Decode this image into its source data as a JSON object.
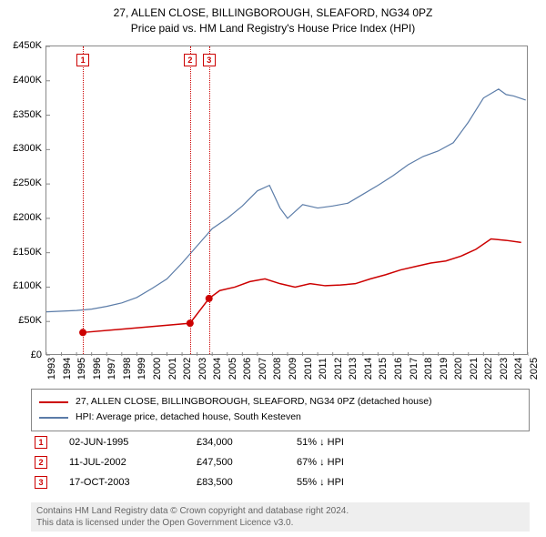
{
  "title": {
    "line1": "27, ALLEN CLOSE, BILLINGBOROUGH, SLEAFORD, NG34 0PZ",
    "line2": "Price paid vs. HM Land Registry's House Price Index (HPI)"
  },
  "chart": {
    "type": "line",
    "background_color": "#ffffff",
    "border_color": "#888888",
    "xlim": [
      1993,
      2025
    ],
    "ylim": [
      0,
      450000
    ],
    "yticks": [
      0,
      50000,
      100000,
      150000,
      200000,
      250000,
      300000,
      350000,
      400000,
      450000
    ],
    "ytick_labels": [
      "£0",
      "£50K",
      "£100K",
      "£150K",
      "£200K",
      "£250K",
      "£300K",
      "£350K",
      "£400K",
      "£450K"
    ],
    "xticks": [
      1993,
      1994,
      1995,
      1996,
      1997,
      1998,
      1999,
      2000,
      2001,
      2002,
      2003,
      2004,
      2005,
      2006,
      2007,
      2008,
      2009,
      2010,
      2011,
      2012,
      2013,
      2014,
      2015,
      2016,
      2017,
      2018,
      2019,
      2020,
      2021,
      2022,
      2023,
      2024,
      2025
    ],
    "label_fontsize": 11,
    "series": {
      "property": {
        "color": "#cc0000",
        "line_width": 1.5,
        "marker_color": "#cc0000",
        "marker_size": 4,
        "points": [
          [
            1995.42,
            34000
          ],
          [
            2002.53,
            47500
          ],
          [
            2003.79,
            83500
          ],
          [
            2004.5,
            95000
          ],
          [
            2005.5,
            100000
          ],
          [
            2006.5,
            108000
          ],
          [
            2007.5,
            112000
          ],
          [
            2008.5,
            105000
          ],
          [
            2009.5,
            100000
          ],
          [
            2010.5,
            105000
          ],
          [
            2011.5,
            102000
          ],
          [
            2012.5,
            103000
          ],
          [
            2013.5,
            105000
          ],
          [
            2014.5,
            112000
          ],
          [
            2015.5,
            118000
          ],
          [
            2016.5,
            125000
          ],
          [
            2017.5,
            130000
          ],
          [
            2018.5,
            135000
          ],
          [
            2019.5,
            138000
          ],
          [
            2020.5,
            145000
          ],
          [
            2021.5,
            155000
          ],
          [
            2022.5,
            170000
          ],
          [
            2023.5,
            168000
          ],
          [
            2024.5,
            165000
          ]
        ],
        "sale_markers": [
          {
            "x": 1995.42,
            "y": 34000
          },
          {
            "x": 2002.53,
            "y": 47500
          },
          {
            "x": 2003.79,
            "y": 83500
          }
        ]
      },
      "hpi": {
        "color": "#5b7ca8",
        "line_width": 1.2,
        "points": [
          [
            1993,
            64000
          ],
          [
            1994,
            65000
          ],
          [
            1995,
            66000
          ],
          [
            1996,
            68000
          ],
          [
            1997,
            72000
          ],
          [
            1998,
            77000
          ],
          [
            1999,
            85000
          ],
          [
            2000,
            98000
          ],
          [
            2001,
            112000
          ],
          [
            2002,
            135000
          ],
          [
            2003,
            160000
          ],
          [
            2004,
            185000
          ],
          [
            2005,
            200000
          ],
          [
            2006,
            218000
          ],
          [
            2007,
            240000
          ],
          [
            2007.8,
            248000
          ],
          [
            2008.5,
            215000
          ],
          [
            2009,
            200000
          ],
          [
            2010,
            220000
          ],
          [
            2011,
            215000
          ],
          [
            2012,
            218000
          ],
          [
            2013,
            222000
          ],
          [
            2014,
            235000
          ],
          [
            2015,
            248000
          ],
          [
            2016,
            262000
          ],
          [
            2017,
            278000
          ],
          [
            2018,
            290000
          ],
          [
            2019,
            298000
          ],
          [
            2020,
            310000
          ],
          [
            2021,
            340000
          ],
          [
            2022,
            375000
          ],
          [
            2023,
            388000
          ],
          [
            2023.5,
            380000
          ],
          [
            2024,
            378000
          ],
          [
            2024.8,
            372000
          ]
        ]
      }
    },
    "vertical_markers": [
      {
        "n": "1",
        "x": 1995.42,
        "color": "#cc0000"
      },
      {
        "n": "2",
        "x": 2002.53,
        "color": "#cc0000"
      },
      {
        "n": "3",
        "x": 2003.79,
        "color": "#cc0000"
      }
    ]
  },
  "legend": {
    "items": [
      {
        "color": "#cc0000",
        "label": "27, ALLEN CLOSE, BILLINGBOROUGH, SLEAFORD, NG34 0PZ (detached house)"
      },
      {
        "color": "#5b7ca8",
        "label": "HPI: Average price, detached house, South Kesteven"
      }
    ]
  },
  "sales": [
    {
      "n": "1",
      "color": "#cc0000",
      "date": "02-JUN-1995",
      "price": "£34,000",
      "pct": "51% ↓ HPI"
    },
    {
      "n": "2",
      "color": "#cc0000",
      "date": "11-JUL-2002",
      "price": "£47,500",
      "pct": "67% ↓ HPI"
    },
    {
      "n": "3",
      "color": "#cc0000",
      "date": "17-OCT-2003",
      "price": "£83,500",
      "pct": "55% ↓ HPI"
    }
  ],
  "footer": {
    "line1": "Contains HM Land Registry data © Crown copyright and database right 2024.",
    "line2": "This data is licensed under the Open Government Licence v3.0."
  }
}
